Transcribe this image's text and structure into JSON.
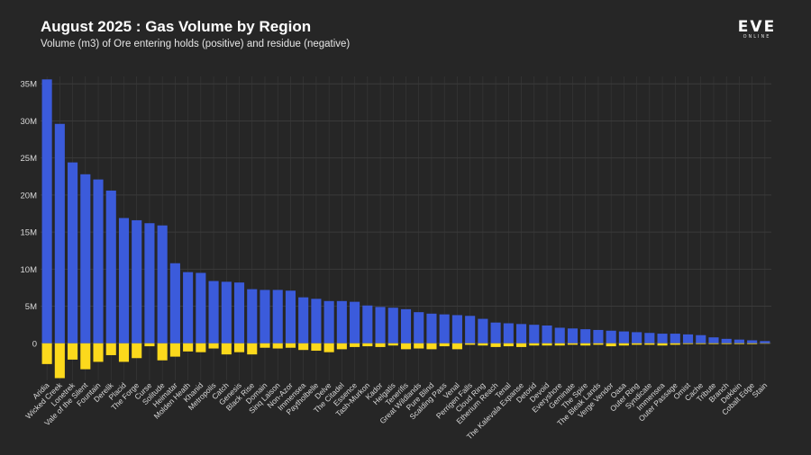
{
  "header": {
    "title": "August 2025 : Gas Volume by Region",
    "subtitle": "Volume (m3) of Ore entering holds (positive) and residue (negative)"
  },
  "logo": {
    "main": "EVE",
    "sub": "ONLINE"
  },
  "colors": {
    "background": "#262626",
    "grid": "#3a3a3a",
    "positive": "#3b5bdb",
    "negative": "#fcd91c",
    "tick_text": "#d9d9d9"
  },
  "chart_data": {
    "type": "bar",
    "title": "August 2025 : Gas Volume by Region",
    "subtitle": "Volume (m3) of Ore entering holds (positive) and residue (negative)",
    "xlabel": "",
    "ylabel": "",
    "ylim": [
      -5000000,
      36000000
    ],
    "yticks": [
      0,
      5000000,
      10000000,
      15000000,
      20000000,
      25000000,
      30000000,
      35000000
    ],
    "ytick_labels": [
      "0",
      "5M",
      "10M",
      "15M",
      "20M",
      "25M",
      "30M",
      "35M"
    ],
    "grid": true,
    "categories": [
      "Aridia",
      "Wicked Creek",
      "Lonetrek",
      "Vale of the Silent",
      "Fountain",
      "Derelik",
      "Placid",
      "The Forge",
      "Curse",
      "Solitude",
      "Heimatar",
      "Molden Heath",
      "Khanid",
      "Metropolis",
      "Catch",
      "Genesis",
      "Black Rise",
      "Domain",
      "Sinq Laison",
      "Non-Azor",
      "Immensea",
      "Paytholbelle",
      "Delve",
      "The Citadel",
      "Essence",
      "Tash-Murkon",
      "Kador",
      "Helgatis",
      "Tenerifis",
      "Great Wildlands",
      "Pure Blind",
      "Scalding Pass",
      "Venal",
      "Perrigen Falls",
      "Cloud Ring",
      "Etherium Reach",
      "Tenal",
      "The Kalevala Expanse",
      "Detorid",
      "Devoid",
      "Everyshore",
      "Geminate",
      "The Spire",
      "The Bleak Lands",
      "Verge Vendor",
      "Oasa",
      "Outer Ring",
      "Syndicate",
      "Immensea",
      "Outer Passage",
      "Omist",
      "Cache",
      "Tribute",
      "Branch",
      "Deklein",
      "Cobalt Edge",
      "Stain"
    ],
    "series": [
      {
        "values": [
          35600000,
          29600000,
          24400000,
          22800000,
          22100000,
          20600000,
          16900000,
          16600000,
          16200000,
          15900000,
          10800000,
          9600000,
          9500000,
          8400000,
          8300000,
          8200000,
          7300000,
          7200000,
          7200000,
          7100000,
          6200000,
          6000000,
          5700000,
          5700000,
          5600000,
          5100000,
          4900000,
          4800000,
          4600000,
          4200000,
          4000000,
          3900000,
          3800000,
          3700000,
          3300000,
          2800000,
          2700000,
          2600000,
          2500000,
          2400000,
          2100000,
          2000000,
          1900000,
          1800000,
          1700000,
          1600000,
          1500000,
          1400000,
          1300000,
          1300000,
          1200000,
          1100000,
          800000,
          600000,
          500000,
          400000,
          300000
        ]
      },
      {
        "values": [
          -2800000,
          -4700000,
          -2200000,
          -3500000,
          -2500000,
          -1600000,
          -2500000,
          -2000000,
          -400000,
          -2300000,
          -1800000,
          -1100000,
          -1200000,
          -700000,
          -1500000,
          -1200000,
          -1500000,
          -600000,
          -700000,
          -600000,
          -900000,
          -1000000,
          -1200000,
          -800000,
          -500000,
          -400000,
          -500000,
          -300000,
          -800000,
          -700000,
          -800000,
          -400000,
          -800000,
          -200000,
          -300000,
          -500000,
          -400000,
          -500000,
          -300000,
          -300000,
          -300000,
          -200000,
          -300000,
          -200000,
          -400000,
          -300000,
          -200000,
          -200000,
          -300000,
          -200000,
          -100000,
          -100000,
          -100000,
          -100000,
          -100000,
          -100000,
          -50000
        ]
      }
    ]
  }
}
